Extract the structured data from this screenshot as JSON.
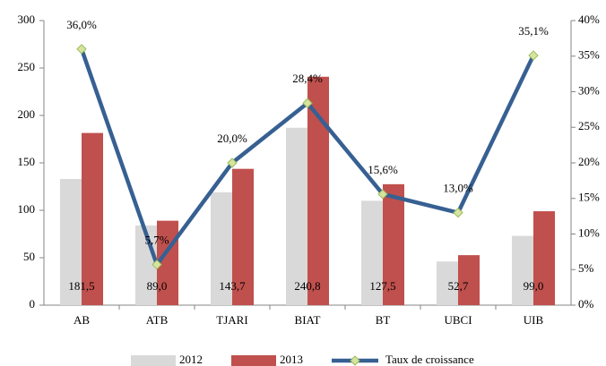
{
  "chart_data": {
    "type": "bar",
    "categories": [
      "AB",
      "ATB",
      "TJARI",
      "BIAT",
      "BT",
      "UBCI",
      "UIB"
    ],
    "series": [
      {
        "name": "2012",
        "type": "bar",
        "color": "#d9d9d9",
        "values": [
          133,
          84,
          119,
          187,
          110,
          46,
          73
        ]
      },
      {
        "name": "2013",
        "type": "bar",
        "color": "#c0504d",
        "values": [
          181.5,
          89.0,
          143.7,
          240.8,
          127.5,
          52.7,
          99.0
        ],
        "value_labels": [
          "181,5",
          "89,0",
          "143,7",
          "240,8",
          "127,5",
          "52,7",
          "99,0"
        ]
      },
      {
        "name": "Taux de croissance",
        "type": "line",
        "axis": "y2",
        "color": "#376092",
        "marker_color": "#d7e4a0",
        "values": [
          36.0,
          5.7,
          20.0,
          28.4,
          15.6,
          13.0,
          35.1
        ],
        "value_labels": [
          "36,0%",
          "5,7%",
          "20,0%",
          "28,4%",
          "15,6%",
          "13,0%",
          "35,1%"
        ]
      }
    ],
    "ylim": [
      0,
      300
    ],
    "yticks": [
      0,
      50,
      100,
      150,
      200,
      250,
      300
    ],
    "y2lim": [
      0,
      40
    ],
    "y2ticks": [
      {
        "value": 0,
        "label": "0%"
      },
      {
        "value": 5,
        "label": "5%"
      },
      {
        "value": 10,
        "label": "10%"
      },
      {
        "value": 15,
        "label": "15%"
      },
      {
        "value": 20,
        "label": "20%"
      },
      {
        "value": 25,
        "label": "25%"
      },
      {
        "value": 30,
        "label": "30%"
      },
      {
        "value": 35,
        "label": "35%"
      },
      {
        "value": 40,
        "label": "40%"
      }
    ],
    "grid": false,
    "legend": "bottom"
  }
}
